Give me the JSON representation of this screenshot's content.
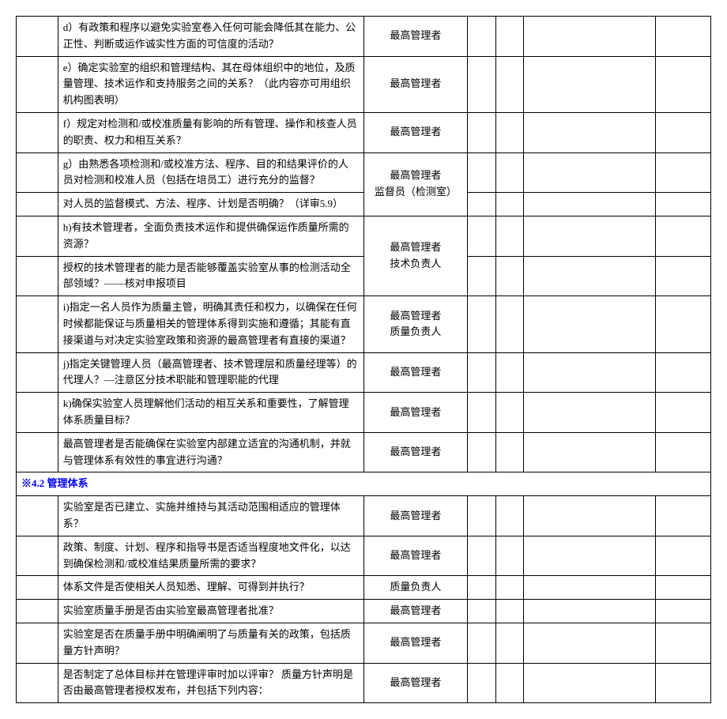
{
  "rows": [
    {
      "t": "d）有政策和程序以避免实验室卷入任何可能会降低其在能力、公正性、判断或运作诚实性方面的可信度的活动？",
      "p": "最高管理者",
      "span": 1
    },
    {
      "t": "e）确定实验室的组织和管理结构、其在母体组织中的地位，及质量管理、技术运作和支持服务之间的关系？（此内容亦可用组织机构图表明）",
      "p": "最高管理者",
      "span": 1
    },
    {
      "t": "f）规定对检测和/或校准质量有影响的所有管理、操作和核查人员的职责、权力和相互关系？",
      "p": "最高管理者",
      "span": 1
    },
    {
      "t": "g）由熟悉各项检测和/或校准方法、程序、目的和结果评价的人员对检测和校准人员（包括在培员工）进行充分的监督？",
      "p": "最高管理者\n监督员（检测室）",
      "span": 2
    },
    {
      "t": "对人员的监督模式、方法、程序、计划是否明确？（详审5.9）",
      "merged": true
    },
    {
      "t": "h)有技术管理者，全面负责技术运作和提供确保运作质量所需的资源？",
      "p": "最高管理者\n技术负责人",
      "span": 2
    },
    {
      "t": "授权的技术管理者的能力是否能够覆盖实验室从事的检测活动全部领域？——核对申报项目",
      "merged": true
    },
    {
      "t": "i)指定一名人员作为质量主管，明确其责任和权力，以确保在任何时候都能保证与质量相关的管理体系得到实施和遵循；其能有直接渠道与对决定实验室政策和资源的最高管理者有直接的渠道？",
      "p": "最高管理者\n质量负责人",
      "span": 1
    },
    {
      "t": "j)指定关键管理人员（最高管理者、技术管理层和质量经理等）的代理人？—注意区分技术职能和管理职能的代理",
      "p": "最高管理者",
      "span": 1
    },
    {
      "t": "k)确保实验室人员理解他们活动的相互关系和重要性，了解管理体系质量目标？",
      "p": "最高管理者",
      "span": 1
    },
    {
      "t": "最高管理者是否能确保在实验室内部建立适宜的沟通机制，并就与管理体系有效性的事宜进行沟通？",
      "p": "最高管理者",
      "span": 1
    }
  ],
  "section": "※4.2 管理体系",
  "rows2": [
    {
      "t": "实验室是否已建立、实施并维持与其活动范围相适应的管理体系？",
      "p": "最高管理者"
    },
    {
      "t": "政策、制度、计划、程序和指导书是否适当程度地文件化，以达到确保检测和/或校准结果质量所需的要求？",
      "p": "最高管理者"
    },
    {
      "t": "体系文件是否使相关人员知悉、理解、可得到并执行？",
      "p": "质量负责人"
    },
    {
      "t": "实验室质量手册是否由实验室最高管理者批准？",
      "p": "最高管理者"
    },
    {
      "t": "实验室是否在质量手册中明确阐明了与质量有关的政策，包括质量方针声明？",
      "p": "最高管理者"
    },
    {
      "t": "是否制定了总体目标并在管理评审时加以评审？\n质量方针声明是否由最高管理者授权发布，并包括下列内容：",
      "p": "最高管理者"
    }
  ]
}
